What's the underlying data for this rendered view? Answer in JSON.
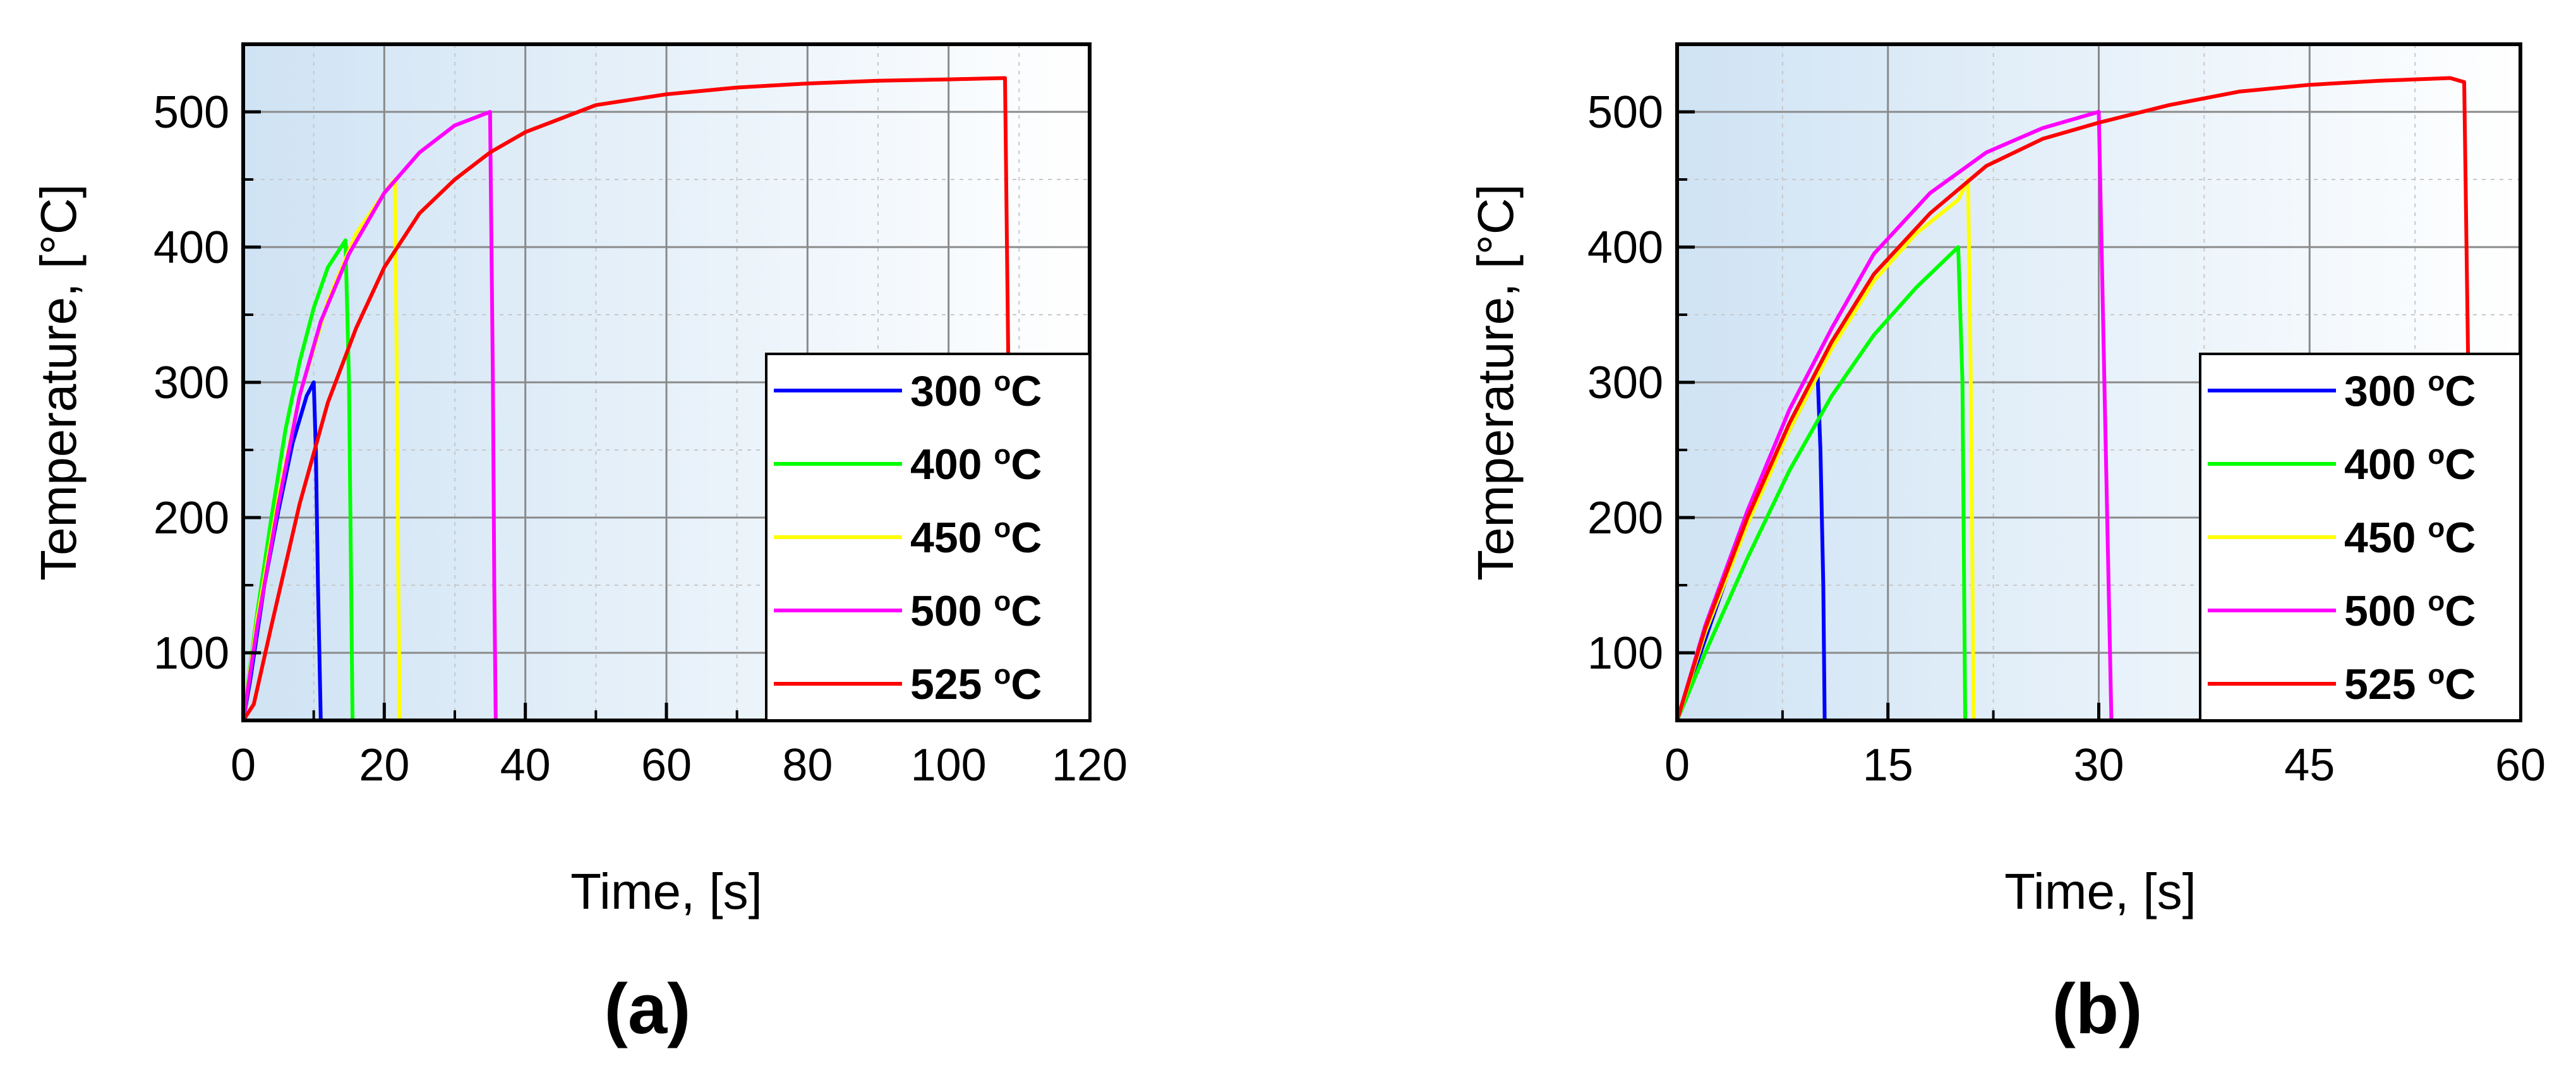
{
  "chart_data": [
    {
      "type": "line",
      "panel_label": "(a)",
      "xlabel": "Time, [s]",
      "ylabel": "Temperature, [°C]",
      "xlim": [
        0,
        120
      ],
      "ylim": [
        50,
        550
      ],
      "xticks": [
        0,
        20,
        40,
        60,
        80,
        100,
        120
      ],
      "yticks": [
        100,
        200,
        300,
        400,
        500
      ],
      "grid": true,
      "legend_position": "bottom-right",
      "legend_unit": "C",
      "legend_sup": "o",
      "series": [
        {
          "name": "300",
          "color": "#0000ff",
          "points": [
            [
              0,
              50
            ],
            [
              1,
              80
            ],
            [
              3,
              150
            ],
            [
              5,
              205
            ],
            [
              7,
              255
            ],
            [
              9,
              290
            ],
            [
              10,
              300
            ],
            [
              10.3,
              250
            ],
            [
              10.6,
              150
            ],
            [
              11,
              50
            ]
          ]
        },
        {
          "name": "400",
          "color": "#00ff00",
          "points": [
            [
              0,
              50
            ],
            [
              2,
              130
            ],
            [
              4,
              200
            ],
            [
              6,
              265
            ],
            [
              8,
              315
            ],
            [
              10,
              355
            ],
            [
              12,
              385
            ],
            [
              14.5,
              405
            ],
            [
              15,
              300
            ],
            [
              15.3,
              150
            ],
            [
              15.5,
              50
            ]
          ]
        },
        {
          "name": "450",
          "color": "#ffff00",
          "points": [
            [
              0,
              50
            ],
            [
              2,
              125
            ],
            [
              5,
              215
            ],
            [
              8,
              290
            ],
            [
              12,
              360
            ],
            [
              16,
              410
            ],
            [
              20,
              440
            ],
            [
              21.5,
              450
            ],
            [
              21.8,
              300
            ],
            [
              22,
              150
            ],
            [
              22.2,
              50
            ]
          ]
        },
        {
          "name": "500",
          "color": "#ff00ff",
          "points": [
            [
              0,
              50
            ],
            [
              2,
              120
            ],
            [
              5,
              210
            ],
            [
              8,
              290
            ],
            [
              11,
              345
            ],
            [
              15,
              395
            ],
            [
              20,
              440
            ],
            [
              25,
              470
            ],
            [
              30,
              490
            ],
            [
              35,
              500
            ],
            [
              35.4,
              300
            ],
            [
              35.6,
              150
            ],
            [
              35.8,
              50
            ]
          ]
        },
        {
          "name": "525",
          "color": "#ff0000",
          "points": [
            [
              0,
              50
            ],
            [
              1.5,
              62
            ],
            [
              4,
              120
            ],
            [
              8,
              210
            ],
            [
              12,
              285
            ],
            [
              16,
              340
            ],
            [
              20,
              385
            ],
            [
              25,
              425
            ],
            [
              30,
              450
            ],
            [
              35,
              470
            ],
            [
              40,
              485
            ],
            [
              50,
              505
            ],
            [
              60,
              513
            ],
            [
              70,
              518
            ],
            [
              80,
              521
            ],
            [
              90,
              523
            ],
            [
              100,
              524
            ],
            [
              108,
              525
            ],
            [
              108.5,
              300
            ],
            [
              108.7,
              150
            ],
            [
              109,
              50
            ]
          ]
        }
      ]
    },
    {
      "type": "line",
      "panel_label": "(b)",
      "xlabel": "Time, [s]",
      "ylabel": "Temperature, [°C]",
      "xlim": [
        0,
        60
      ],
      "ylim": [
        50,
        550
      ],
      "xticks": [
        0,
        15,
        30,
        45,
        60
      ],
      "yticks": [
        100,
        200,
        300,
        400,
        500
      ],
      "grid": true,
      "legend_position": "bottom-right",
      "legend_unit": "C",
      "legend_sup": "o",
      "series": [
        {
          "name": "300",
          "color": "#0000ff",
          "points": [
            [
              0,
              50
            ],
            [
              2,
              110
            ],
            [
              4,
              170
            ],
            [
              6,
              220
            ],
            [
              8,
              265
            ],
            [
              10,
              305
            ],
            [
              10.2,
              250
            ],
            [
              10.4,
              150
            ],
            [
              10.5,
              50
            ]
          ]
        },
        {
          "name": "400",
          "color": "#00ff00",
          "points": [
            [
              0,
              50
            ],
            [
              2,
              100
            ],
            [
              5,
              170
            ],
            [
              8,
              235
            ],
            [
              11,
              290
            ],
            [
              14,
              335
            ],
            [
              17,
              370
            ],
            [
              20,
              400
            ],
            [
              20.3,
              300
            ],
            [
              20.5,
              50
            ]
          ]
        },
        {
          "name": "450",
          "color": "#ffff00",
          "points": [
            [
              0,
              50
            ],
            [
              2,
              115
            ],
            [
              5,
              195
            ],
            [
              8,
              265
            ],
            [
              11,
              325
            ],
            [
              14,
              375
            ],
            [
              17,
              410
            ],
            [
              20,
              435
            ],
            [
              20.7,
              450
            ],
            [
              20.9,
              300
            ],
            [
              21.1,
              50
            ]
          ]
        },
        {
          "name": "500",
          "color": "#ff00ff",
          "points": [
            [
              0,
              50
            ],
            [
              2,
              120
            ],
            [
              5,
              205
            ],
            [
              8,
              280
            ],
            [
              11,
              340
            ],
            [
              14,
              395
            ],
            [
              18,
              440
            ],
            [
              22,
              470
            ],
            [
              26,
              488
            ],
            [
              30,
              500
            ],
            [
              30.4,
              300
            ],
            [
              30.7,
              150
            ],
            [
              30.9,
              50
            ]
          ]
        },
        {
          "name": "525",
          "color": "#ff0000",
          "points": [
            [
              0,
              50
            ],
            [
              2,
              118
            ],
            [
              5,
              200
            ],
            [
              8,
              270
            ],
            [
              11,
              330
            ],
            [
              14,
              380
            ],
            [
              18,
              425
            ],
            [
              22,
              460
            ],
            [
              26,
              480
            ],
            [
              30,
              492
            ],
            [
              35,
              505
            ],
            [
              40,
              515
            ],
            [
              45,
              520
            ],
            [
              50,
              523
            ],
            [
              55,
              525
            ],
            [
              56,
              522
            ],
            [
              56.3,
              300
            ],
            [
              56.5,
              150
            ],
            [
              56.8,
              50
            ]
          ]
        }
      ]
    }
  ]
}
